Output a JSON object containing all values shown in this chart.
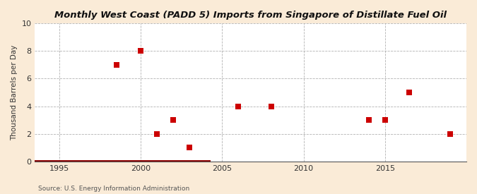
{
  "title": "Monthly West Coast (PADD 5) Imports from Singapore of Distillate Fuel Oil",
  "ylabel": "Thousand Barrels per Day",
  "source": "Source: U.S. Energy Information Administration",
  "fig_background_color": "#faebd7",
  "plot_background_color": "#ffffff",
  "scatter_color": "#cc0000",
  "line_color": "#8b0000",
  "xlim": [
    1993.5,
    2020
  ],
  "ylim": [
    0,
    10
  ],
  "xticks": [
    1995,
    2000,
    2005,
    2010,
    2015
  ],
  "yticks": [
    0,
    2,
    4,
    6,
    8,
    10
  ],
  "scatter_x": [
    1998.5,
    2000.0,
    2001.0,
    2002.0,
    2003.0,
    2006.0,
    2008.0,
    2014.0,
    2015.0,
    2016.5,
    2019.0
  ],
  "scatter_y": [
    7,
    8,
    2,
    3,
    1,
    4,
    4,
    3,
    3,
    5,
    2
  ],
  "zero_line_x_start": 1993.5,
  "zero_line_x_end": 2004.3,
  "marker_size": 30
}
